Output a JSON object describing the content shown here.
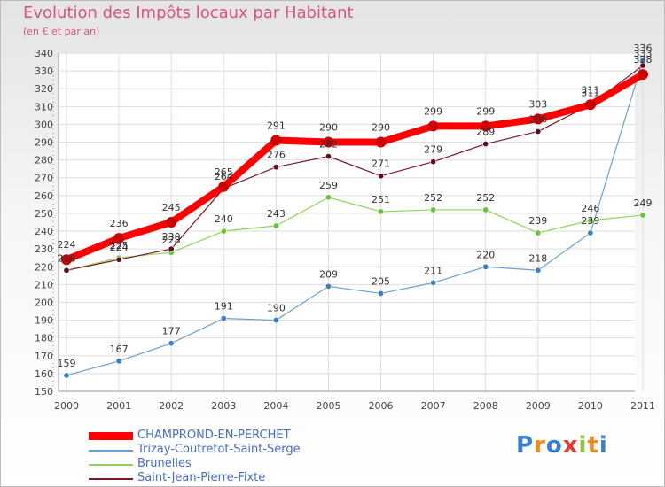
{
  "chart_data": {
    "type": "line",
    "title": "Evolution des Impôts locaux par Habitant",
    "subtitle": "(en € et par an)",
    "x": [
      "2000",
      "2001",
      "2002",
      "2003",
      "2004",
      "2005",
      "2006",
      "2007",
      "2008",
      "2009",
      "2010",
      "2011"
    ],
    "ylim": [
      150,
      340
    ],
    "yticks": [
      150,
      160,
      170,
      180,
      190,
      200,
      210,
      220,
      230,
      240,
      250,
      260,
      270,
      280,
      290,
      300,
      310,
      320,
      330,
      340
    ],
    "grid": true,
    "series": [
      {
        "name": "CHAMPROND-EN-PERCHET",
        "color": "#ff0000",
        "marker_color": "#cc0000",
        "values": [
          224,
          236,
          245,
          265,
          291,
          290,
          290,
          299,
          299,
          303,
          311,
          328
        ]
      },
      {
        "name": "Trizay-Coutretot-Saint-Serge",
        "color": "#6a9fd0",
        "marker_color": "#3d7fc4",
        "values": [
          159,
          167,
          177,
          191,
          190,
          209,
          205,
          211,
          220,
          218,
          239,
          336
        ]
      },
      {
        "name": "Brunelles",
        "color": "#8ed45a",
        "marker_color": "#6cc23a",
        "values": [
          218,
          225,
          228,
          240,
          243,
          259,
          251,
          252,
          252,
          239,
          246,
          249
        ]
      },
      {
        "name": "Saint-Jean-Pierre-Fixte",
        "color": "#7a1a2a",
        "marker_color": "#5e0f1e",
        "values": [
          218,
          224,
          230,
          264,
          276,
          282,
          271,
          279,
          289,
          296,
          311,
          333
        ]
      }
    ],
    "legend_position": "bottom-left"
  },
  "logo": {
    "letters": [
      "P",
      "r",
      "o",
      "x",
      "i",
      "t",
      "i"
    ],
    "colors": [
      "#3a7fd0",
      "#f08a1a",
      "#3a7fd0",
      "#e23b2e",
      "#8cc43c",
      "#f08a1a",
      "#3a7fd0"
    ]
  }
}
